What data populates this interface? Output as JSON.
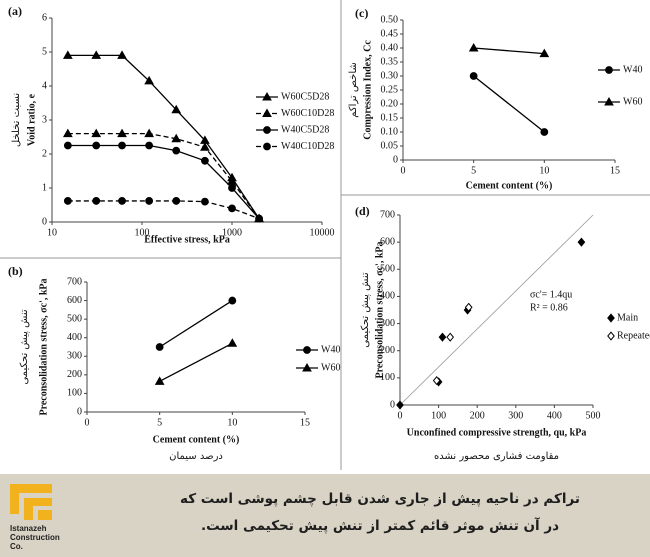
{
  "chart_data": [
    {
      "type": "line",
      "panel": "(a)",
      "xscale": "log",
      "legend": "right",
      "x_label": "Effective stress, kPa",
      "y_label": "Void ratio, e",
      "y_label_fa": "نسبت تخلخل",
      "xlim": [
        10,
        10000
      ],
      "xticks": [
        10,
        100,
        1000,
        10000
      ],
      "ylim": [
        0,
        6
      ],
      "yticks": [
        0,
        1,
        2,
        3,
        4,
        5,
        6
      ],
      "x": [
        15,
        31,
        60,
        120,
        240,
        500,
        1000,
        2000
      ],
      "series": [
        {
          "name": "W60C5D28",
          "color": "#000000",
          "marker": "triangle",
          "filled": true,
          "linestyle": "solid",
          "values": [
            4.9,
            4.9,
            4.9,
            4.15,
            3.3,
            2.4,
            1.3,
            0.1
          ]
        },
        {
          "name": "W60C10D28",
          "color": "#000000",
          "marker": "triangle",
          "filled": true,
          "linestyle": "dashed",
          "values": [
            2.6,
            2.6,
            2.6,
            2.6,
            2.45,
            2.2,
            1.2,
            0.1
          ]
        },
        {
          "name": "W40C5D28",
          "color": "#000000",
          "marker": "circle",
          "filled": true,
          "linestyle": "solid",
          "values": [
            2.25,
            2.25,
            2.25,
            2.25,
            2.1,
            1.8,
            1.0,
            0.1
          ]
        },
        {
          "name": "W40C10D28",
          "color": "#000000",
          "marker": "circle",
          "filled": true,
          "linestyle": "dashed",
          "values": [
            0.62,
            0.62,
            0.62,
            0.62,
            0.62,
            0.6,
            0.4,
            0.1
          ]
        }
      ]
    },
    {
      "type": "line",
      "panel": "(b)",
      "legend": "right",
      "x_label": "Cement content (%)",
      "x_label_fa": "درصد سیمان",
      "y_label": "Preconsolidation stress, σc', kPa",
      "y_label_fa": "تنش پیش تحکیمی",
      "xlim": [
        0,
        15
      ],
      "xticks": [
        0,
        5,
        10,
        15
      ],
      "ylim": [
        0,
        700
      ],
      "yticks": [
        0,
        100,
        200,
        300,
        400,
        500,
        600,
        700
      ],
      "x": [
        5,
        10
      ],
      "series": [
        {
          "name": "W40",
          "color": "#000000",
          "marker": "circle",
          "filled": true,
          "linestyle": "solid",
          "values": [
            350,
            600
          ]
        },
        {
          "name": "W60",
          "color": "#000000",
          "marker": "triangle",
          "filled": true,
          "linestyle": "solid",
          "values": [
            165,
            370
          ]
        }
      ]
    },
    {
      "type": "line",
      "panel": "(c)",
      "legend": "right",
      "x_label": "Cement content (%)",
      "y_label": "Compression Index, Cc",
      "y_label_fa": "شاخص تراکم",
      "xlim": [
        0,
        15
      ],
      "xticks": [
        0,
        5,
        10,
        15
      ],
      "ylim": [
        0,
        0.5
      ],
      "yticks": [
        0,
        0.05,
        {
          "value": 0.1,
          "label": "0.10"
        },
        0.15,
        {
          "value": 0.2,
          "label": "0.20"
        },
        0.25,
        {
          "value": 0.3,
          "label": "0.30"
        },
        0.35,
        {
          "value": 0.4,
          "label": "0.40"
        },
        0.45,
        {
          "value": 0.5,
          "label": "0.50"
        }
      ],
      "x": [
        5,
        10
      ],
      "series": [
        {
          "name": "W40",
          "color": "#000000",
          "marker": "circle",
          "filled": true,
          "linestyle": "solid",
          "values": [
            0.3,
            0.1
          ]
        },
        {
          "name": "W60",
          "color": "#000000",
          "marker": "triangle",
          "filled": true,
          "linestyle": "solid",
          "values": [
            0.4,
            0.38
          ]
        }
      ]
    },
    {
      "type": "scatter",
      "panel": "(d)",
      "legend": "right",
      "x_label": "Unconfined compressive strength, qu, kPa",
      "x_label_fa": "مقاومت فشاری محصور نشده",
      "y_label": "Preconsolidation stress, σc', kPa",
      "y_label_fa": "تنش پیش تحکیمی",
      "xlim": [
        0,
        500
      ],
      "xticks": [
        0,
        100,
        200,
        300,
        400,
        500
      ],
      "ylim": [
        0,
        700
      ],
      "yticks": [
        0,
        100,
        200,
        300,
        400,
        500,
        600,
        700
      ],
      "annotations": [
        "σc'= 1.4qu",
        "R² = 0.86"
      ],
      "trendline": {
        "color": "#999999",
        "x": [
          0,
          500
        ],
        "y": [
          0,
          700
        ]
      },
      "series": [
        {
          "name": "Main",
          "color": "#000000",
          "marker": "diamond",
          "filled": true,
          "x": [
            0,
            100,
            110,
            175,
            470
          ],
          "values": [
            0,
            85,
            250,
            350,
            600
          ]
        },
        {
          "name": "Repeated",
          "color": "#000000",
          "marker": "diamond",
          "filled": false,
          "x": [
            95,
            130,
            178
          ],
          "values": [
            90,
            250,
            360
          ]
        }
      ]
    }
  ],
  "footer": {
    "caption": [
      "تراکم در ناحیه پیش از جاری شدن قابل چشم پوشی است که",
      "در آن تنش موثر قائم کمتر از تنش پیش تحکیمی است."
    ],
    "logo": [
      "Istanazeh",
      "Construction",
      "Co."
    ]
  }
}
